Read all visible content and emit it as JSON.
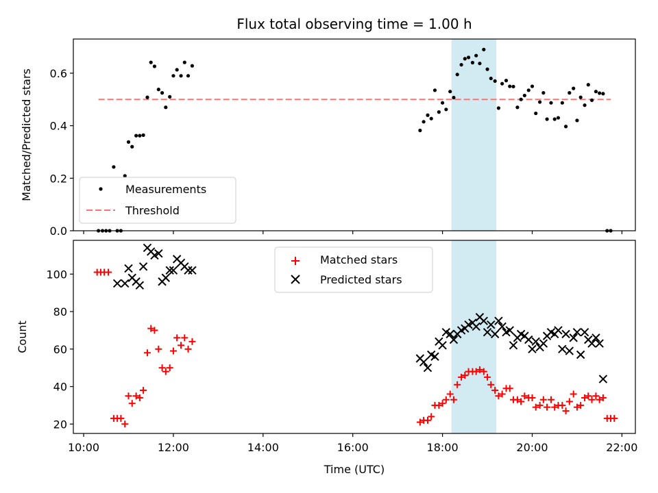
{
  "figure": {
    "title": "Flux total observing time = 1.00 h",
    "xlabel": "Time (UTC)",
    "xticks": [
      "10:00",
      "12:00",
      "14:00",
      "16:00",
      "18:00",
      "20:00",
      "22:00"
    ]
  },
  "colors": {
    "highlight": "#add8e6",
    "threshold": "#ff7070",
    "matched": "#ff0000",
    "predicted": "#000000"
  },
  "chart_data": [
    {
      "type": "scatter",
      "ylabel": "Matched/Predicted stars",
      "x_unit": "hours UTC",
      "xlim": [
        9.77,
        22.3
      ],
      "ylim": [
        0,
        0.73
      ],
      "yticks": [
        "0.0",
        "0.2",
        "0.4",
        "0.6"
      ],
      "ytick_values": [
        0,
        0.2,
        0.4,
        0.6
      ],
      "highlight_span": [
        18.2,
        19.2
      ],
      "legend": {
        "position": "lower-left",
        "entries": [
          "Measurements",
          "Threshold"
        ]
      },
      "threshold": {
        "name": "Threshold",
        "y": 0.5,
        "x": [
          10.33,
          21.75
        ]
      },
      "series": [
        {
          "name": "Measurements",
          "points": [
            [
              10.33,
              0
            ],
            [
              10.42,
              0
            ],
            [
              10.5,
              0
            ],
            [
              10.58,
              0
            ],
            [
              10.67,
              0.243
            ],
            [
              10.75,
              0
            ],
            [
              10.83,
              0
            ],
            [
              10.92,
              0.209
            ],
            [
              11.0,
              0.338
            ],
            [
              11.08,
              0.32
            ],
            [
              11.17,
              0.362
            ],
            [
              11.25,
              0.362
            ],
            [
              11.33,
              0.364
            ],
            [
              11.42,
              0.508
            ],
            [
              11.5,
              0.641
            ],
            [
              11.58,
              0.626
            ],
            [
              11.67,
              0.538
            ],
            [
              11.75,
              0.525
            ],
            [
              11.83,
              0.47
            ],
            [
              11.92,
              0.51
            ],
            [
              12.0,
              0.59
            ],
            [
              12.08,
              0.613
            ],
            [
              12.17,
              0.59
            ],
            [
              12.25,
              0.641
            ],
            [
              12.33,
              0.59
            ],
            [
              12.42,
              0.628
            ],
            [
              17.5,
              0.382
            ],
            [
              17.58,
              0.415
            ],
            [
              17.67,
              0.44
            ],
            [
              17.75,
              0.427
            ],
            [
              17.83,
              0.535
            ],
            [
              17.92,
              0.452
            ],
            [
              18.0,
              0.487
            ],
            [
              18.08,
              0.462
            ],
            [
              18.17,
              0.53
            ],
            [
              18.25,
              0.507
            ],
            [
              18.33,
              0.595
            ],
            [
              18.42,
              0.632
            ],
            [
              18.5,
              0.655
            ],
            [
              18.58,
              0.66
            ],
            [
              18.67,
              0.64
            ],
            [
              18.75,
              0.667
            ],
            [
              18.83,
              0.637
            ],
            [
              18.92,
              0.69
            ],
            [
              19.0,
              0.615
            ],
            [
              19.08,
              0.58
            ],
            [
              19.17,
              0.57
            ],
            [
              19.25,
              0.467
            ],
            [
              19.33,
              0.56
            ],
            [
              19.42,
              0.572
            ],
            [
              19.5,
              0.55
            ],
            [
              19.58,
              0.549
            ],
            [
              19.67,
              0.47
            ],
            [
              19.75,
              0.5
            ],
            [
              19.83,
              0.515
            ],
            [
              19.92,
              0.535
            ],
            [
              20.0,
              0.55
            ],
            [
              20.08,
              0.447
            ],
            [
              20.17,
              0.49
            ],
            [
              20.25,
              0.525
            ],
            [
              20.33,
              0.425
            ],
            [
              20.42,
              0.487
            ],
            [
              20.5,
              0.425
            ],
            [
              20.58,
              0.43
            ],
            [
              20.67,
              0.487
            ],
            [
              20.75,
              0.397
            ],
            [
              20.83,
              0.525
            ],
            [
              20.92,
              0.542
            ],
            [
              21.0,
              0.42
            ],
            [
              21.08,
              0.508
            ],
            [
              21.17,
              0.478
            ],
            [
              21.25,
              0.556
            ],
            [
              21.33,
              0.497
            ],
            [
              21.42,
              0.53
            ],
            [
              21.5,
              0.524
            ],
            [
              21.58,
              0.522
            ],
            [
              21.67,
              0
            ],
            [
              21.75,
              0
            ]
          ]
        }
      ]
    },
    {
      "type": "scatter",
      "ylabel": "Count",
      "x_unit": "hours UTC",
      "xlim": [
        9.77,
        22.3
      ],
      "ylim": [
        15,
        118
      ],
      "yticks": [
        "20",
        "40",
        "60",
        "80",
        "100"
      ],
      "ytick_values": [
        20,
        40,
        60,
        80,
        100
      ],
      "highlight_span": [
        18.2,
        19.2
      ],
      "legend": {
        "position": "top-center",
        "entries": [
          "Matched stars",
          "Predicted stars"
        ]
      },
      "series": [
        {
          "name": "Matched stars",
          "marker": "plus",
          "points": [
            [
              10.3,
              101
            ],
            [
              10.38,
              101
            ],
            [
              10.46,
              101
            ],
            [
              10.55,
              101
            ],
            [
              10.67,
              23
            ],
            [
              10.75,
              23
            ],
            [
              10.83,
              23
            ],
            [
              10.92,
              20
            ],
            [
              11.0,
              35
            ],
            [
              11.08,
              31
            ],
            [
              11.17,
              35
            ],
            [
              11.25,
              34
            ],
            [
              11.33,
              38
            ],
            [
              11.42,
              58
            ],
            [
              11.5,
              71
            ],
            [
              11.58,
              70
            ],
            [
              11.67,
              60
            ],
            [
              11.75,
              50
            ],
            [
              11.83,
              48
            ],
            [
              11.92,
              50
            ],
            [
              12.0,
              59
            ],
            [
              12.08,
              66
            ],
            [
              12.17,
              62
            ],
            [
              12.25,
              66
            ],
            [
              12.33,
              60
            ],
            [
              12.42,
              64
            ],
            [
              17.5,
              21
            ],
            [
              17.58,
              22
            ],
            [
              17.67,
              22
            ],
            [
              17.75,
              24
            ],
            [
              17.83,
              30
            ],
            [
              17.92,
              30
            ],
            [
              18.0,
              31
            ],
            [
              18.08,
              33
            ],
            [
              18.17,
              36
            ],
            [
              18.25,
              33
            ],
            [
              18.33,
              41
            ],
            [
              18.42,
              45
            ],
            [
              18.5,
              46
            ],
            [
              18.58,
              48
            ],
            [
              18.67,
              48
            ],
            [
              18.75,
              48
            ],
            [
              18.83,
              49
            ],
            [
              18.92,
              48
            ],
            [
              19.0,
              45
            ],
            [
              19.08,
              41
            ],
            [
              19.17,
              38
            ],
            [
              19.25,
              35
            ],
            [
              19.33,
              36
            ],
            [
              19.42,
              39
            ],
            [
              19.5,
              39
            ],
            [
              19.58,
              33
            ],
            [
              19.67,
              33
            ],
            [
              19.75,
              32
            ],
            [
              19.83,
              35
            ],
            [
              19.92,
              34
            ],
            [
              20.0,
              34
            ],
            [
              20.08,
              29
            ],
            [
              20.17,
              30
            ],
            [
              20.25,
              33
            ],
            [
              20.33,
              29
            ],
            [
              20.42,
              33
            ],
            [
              20.5,
              29
            ],
            [
              20.58,
              30
            ],
            [
              20.67,
              30
            ],
            [
              20.75,
              27
            ],
            [
              20.83,
              32
            ],
            [
              20.92,
              36
            ],
            [
              21.0,
              29
            ],
            [
              21.08,
              30
            ],
            [
              21.17,
              34
            ],
            [
              21.25,
              35
            ],
            [
              21.33,
              33
            ],
            [
              21.42,
              35
            ],
            [
              21.5,
              33
            ],
            [
              21.58,
              34
            ],
            [
              21.67,
              23
            ],
            [
              21.75,
              23
            ],
            [
              21.83,
              23
            ]
          ]
        },
        {
          "name": "Predicted stars",
          "marker": "x",
          "points": [
            [
              10.75,
              95
            ],
            [
              10.92,
              95
            ],
            [
              11.0,
              103
            ],
            [
              11.08,
              98
            ],
            [
              11.17,
              96
            ],
            [
              11.25,
              94
            ],
            [
              11.33,
              104
            ],
            [
              11.42,
              114
            ],
            [
              11.5,
              112
            ],
            [
              11.58,
              110
            ],
            [
              11.67,
              111
            ],
            [
              11.75,
              96
            ],
            [
              11.83,
              98
            ],
            [
              11.92,
              102
            ],
            [
              12.0,
              102
            ],
            [
              12.08,
              108
            ],
            [
              12.17,
              106
            ],
            [
              12.25,
              104
            ],
            [
              12.33,
              102
            ],
            [
              12.42,
              102
            ],
            [
              17.5,
              55
            ],
            [
              17.58,
              53
            ],
            [
              17.67,
              50
            ],
            [
              17.75,
              57
            ],
            [
              17.83,
              56
            ],
            [
              17.92,
              64
            ],
            [
              18.0,
              62
            ],
            [
              18.08,
              69
            ],
            [
              18.17,
              68
            ],
            [
              18.25,
              65
            ],
            [
              18.33,
              68
            ],
            [
              18.42,
              70
            ],
            [
              18.5,
              71
            ],
            [
              18.58,
              73
            ],
            [
              18.67,
              74
            ],
            [
              18.75,
              72
            ],
            [
              18.83,
              77
            ],
            [
              18.92,
              75
            ],
            [
              19.0,
              69
            ],
            [
              19.08,
              73
            ],
            [
              19.17,
              68
            ],
            [
              19.25,
              75
            ],
            [
              19.33,
              72
            ],
            [
              19.42,
              69
            ],
            [
              19.5,
              70
            ],
            [
              19.58,
              62
            ],
            [
              19.67,
              66
            ],
            [
              19.75,
              68
            ],
            [
              19.83,
              67
            ],
            [
              19.92,
              65
            ],
            [
              20.0,
              60
            ],
            [
              20.08,
              64
            ],
            [
              20.17,
              61
            ],
            [
              20.25,
              63
            ],
            [
              20.33,
              67
            ],
            [
              20.42,
              69
            ],
            [
              20.5,
              68
            ],
            [
              20.58,
              70
            ],
            [
              20.67,
              60
            ],
            [
              20.75,
              68
            ],
            [
              20.83,
              59
            ],
            [
              20.92,
              66
            ],
            [
              21.0,
              69
            ],
            [
              21.08,
              57
            ],
            [
              21.17,
              69
            ],
            [
              21.25,
              65
            ],
            [
              21.33,
              63
            ],
            [
              21.42,
              66
            ],
            [
              21.5,
              63
            ],
            [
              21.58,
              44
            ]
          ]
        }
      ]
    }
  ]
}
